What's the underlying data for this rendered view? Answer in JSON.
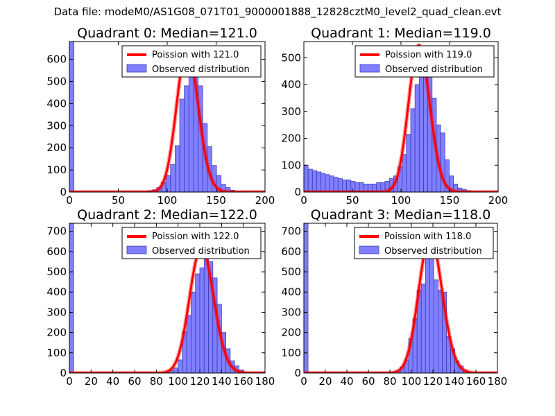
{
  "figure": {
    "title": "Data file: modeM0/AS1G08_071T01_9000001888_12828cztM0_level2_quad_clean.evt"
  },
  "colors": {
    "bar_fill": "#7f7fff",
    "bar_edge": "#3d3db8",
    "poisson_line": "#ff0000",
    "axis": "#000000"
  },
  "chart_data": [
    {
      "type": "bar",
      "title": "Quadrant 0: Median=121.0",
      "xlim": [
        0,
        200
      ],
      "ylim": [
        0,
        680
      ],
      "xticks": [
        0,
        50,
        100,
        150,
        200
      ],
      "yticks": [
        0,
        100,
        200,
        300,
        400,
        500,
        600
      ],
      "bin_width": 4.7,
      "bins": [
        {
          "x": 0,
          "y": 680
        },
        {
          "x": 75.2,
          "y": 3
        },
        {
          "x": 79.9,
          "y": 6
        },
        {
          "x": 84.6,
          "y": 10
        },
        {
          "x": 89.3,
          "y": 20
        },
        {
          "x": 94.0,
          "y": 45
        },
        {
          "x": 98.7,
          "y": 75
        },
        {
          "x": 103.4,
          "y": 125
        },
        {
          "x": 108.1,
          "y": 210
        },
        {
          "x": 112.8,
          "y": 420
        },
        {
          "x": 117.5,
          "y": 480
        },
        {
          "x": 122.2,
          "y": 620
        },
        {
          "x": 126.9,
          "y": 560
        },
        {
          "x": 131.6,
          "y": 480
        },
        {
          "x": 136.3,
          "y": 310
        },
        {
          "x": 141.0,
          "y": 205
        },
        {
          "x": 145.7,
          "y": 120
        },
        {
          "x": 150.4,
          "y": 75
        },
        {
          "x": 155.1,
          "y": 35
        },
        {
          "x": 159.8,
          "y": 20
        },
        {
          "x": 164.5,
          "y": 8
        },
        {
          "x": 169.2,
          "y": 3
        }
      ],
      "poisson_mean": 121.0,
      "legend": [
        "Poission with 121.0",
        "Observed distribution"
      ],
      "legend_position": "top-right"
    },
    {
      "type": "bar",
      "title": "Quadrant 1: Median=119.0",
      "xlim": [
        0,
        200
      ],
      "ylim": [
        0,
        560
      ],
      "xticks": [
        0,
        50,
        100,
        150,
        200
      ],
      "yticks": [
        0,
        100,
        200,
        300,
        400,
        500
      ],
      "bin_width": 4.4,
      "bins": [
        {
          "x": 0.0,
          "y": 100
        },
        {
          "x": 4.4,
          "y": 85
        },
        {
          "x": 8.8,
          "y": 80
        },
        {
          "x": 13.2,
          "y": 75
        },
        {
          "x": 17.6,
          "y": 70
        },
        {
          "x": 22.0,
          "y": 65
        },
        {
          "x": 26.4,
          "y": 60
        },
        {
          "x": 30.8,
          "y": 55
        },
        {
          "x": 35.2,
          "y": 50
        },
        {
          "x": 39.6,
          "y": 45
        },
        {
          "x": 44.0,
          "y": 45
        },
        {
          "x": 48.4,
          "y": 40
        },
        {
          "x": 52.8,
          "y": 35
        },
        {
          "x": 57.2,
          "y": 35
        },
        {
          "x": 61.6,
          "y": 30
        },
        {
          "x": 66.0,
          "y": 30
        },
        {
          "x": 70.4,
          "y": 30
        },
        {
          "x": 74.8,
          "y": 35
        },
        {
          "x": 79.2,
          "y": 35
        },
        {
          "x": 83.6,
          "y": 40
        },
        {
          "x": 88.0,
          "y": 50
        },
        {
          "x": 92.4,
          "y": 60
        },
        {
          "x": 96.8,
          "y": 95
        },
        {
          "x": 101.2,
          "y": 140
        },
        {
          "x": 105.6,
          "y": 215
        },
        {
          "x": 110.0,
          "y": 310
        },
        {
          "x": 114.4,
          "y": 400
        },
        {
          "x": 118.8,
          "y": 520
        },
        {
          "x": 123.2,
          "y": 490
        },
        {
          "x": 127.6,
          "y": 450
        },
        {
          "x": 132.0,
          "y": 350
        },
        {
          "x": 136.4,
          "y": 250
        },
        {
          "x": 140.8,
          "y": 220
        },
        {
          "x": 145.2,
          "y": 120
        },
        {
          "x": 149.6,
          "y": 60
        },
        {
          "x": 154.0,
          "y": 30
        },
        {
          "x": 158.4,
          "y": 15
        },
        {
          "x": 162.8,
          "y": 10
        },
        {
          "x": 167.2,
          "y": 5
        },
        {
          "x": 171.6,
          "y": 3
        }
      ],
      "poisson_mean": 119.0,
      "legend": [
        "Poission with 119.0",
        "Observed distribution"
      ],
      "legend_position": "top-right"
    },
    {
      "type": "bar",
      "title": "Quadrant 2: Median=122.0",
      "xlim": [
        0,
        180
      ],
      "ylim": [
        0,
        740
      ],
      "xticks": [
        0,
        20,
        40,
        60,
        80,
        100,
        120,
        140,
        160,
        180
      ],
      "yticks": [
        0,
        100,
        200,
        300,
        400,
        500,
        600,
        700
      ],
      "bin_width": 4.0,
      "bins": [
        {
          "x": 0,
          "y": 740
        },
        {
          "x": 88,
          "y": 5
        },
        {
          "x": 92,
          "y": 12
        },
        {
          "x": 96,
          "y": 25
        },
        {
          "x": 100,
          "y": 65
        },
        {
          "x": 104,
          "y": 205
        },
        {
          "x": 108,
          "y": 285
        },
        {
          "x": 112,
          "y": 400
        },
        {
          "x": 116,
          "y": 490
        },
        {
          "x": 120,
          "y": 520
        },
        {
          "x": 124,
          "y": 590
        },
        {
          "x": 128,
          "y": 550
        },
        {
          "x": 132,
          "y": 470
        },
        {
          "x": 136,
          "y": 340
        },
        {
          "x": 140,
          "y": 200
        },
        {
          "x": 144,
          "y": 120
        },
        {
          "x": 148,
          "y": 60
        },
        {
          "x": 152,
          "y": 35
        },
        {
          "x": 156,
          "y": 15
        },
        {
          "x": 160,
          "y": 5
        }
      ],
      "poisson_mean": 122.0,
      "legend": [
        "Poission with 122.0",
        "Observed distribution"
      ],
      "legend_position": "top-right"
    },
    {
      "type": "bar",
      "title": "Quadrant 3: Median=118.0",
      "xlim": [
        0,
        180
      ],
      "ylim": [
        0,
        740
      ],
      "xticks": [
        0,
        20,
        40,
        60,
        80,
        100,
        120,
        140,
        160,
        180
      ],
      "yticks": [
        0,
        100,
        200,
        300,
        400,
        500,
        600,
        700
      ],
      "bin_width": 3.9,
      "bins": [
        {
          "x": 0,
          "y": 740
        },
        {
          "x": 81.9,
          "y": 5
        },
        {
          "x": 85.8,
          "y": 12
        },
        {
          "x": 89.7,
          "y": 30
        },
        {
          "x": 93.6,
          "y": 65
        },
        {
          "x": 97.5,
          "y": 170
        },
        {
          "x": 101.4,
          "y": 270
        },
        {
          "x": 105.3,
          "y": 410
        },
        {
          "x": 109.2,
          "y": 440
        },
        {
          "x": 113.1,
          "y": 640
        },
        {
          "x": 117.0,
          "y": 600
        },
        {
          "x": 120.9,
          "y": 460
        },
        {
          "x": 124.8,
          "y": 410
        },
        {
          "x": 128.7,
          "y": 400
        },
        {
          "x": 132.6,
          "y": 180
        },
        {
          "x": 136.5,
          "y": 120
        },
        {
          "x": 140.4,
          "y": 60
        },
        {
          "x": 144.3,
          "y": 35
        },
        {
          "x": 148.2,
          "y": 15
        },
        {
          "x": 152.1,
          "y": 5
        }
      ],
      "poisson_mean": 118.0,
      "legend": [
        "Poission with 118.0",
        "Observed distribution"
      ],
      "legend_position": "top-right"
    }
  ]
}
